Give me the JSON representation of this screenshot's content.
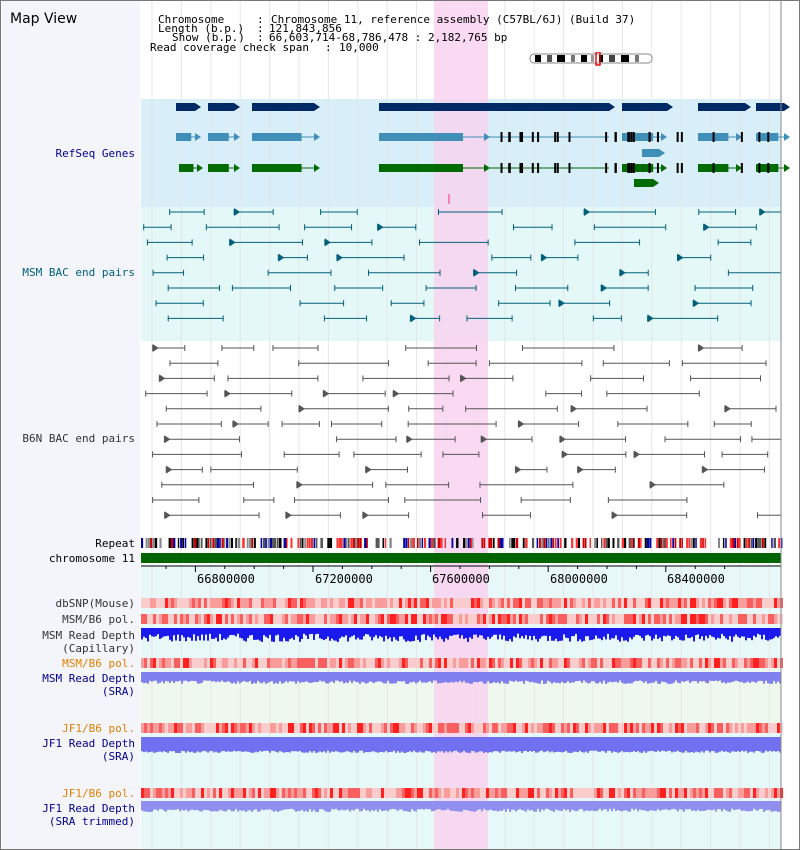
{
  "page": {
    "title": "Map View"
  },
  "header": {
    "chromosome_label": "Chromosome",
    "chromosome_value": "Chromosome 11, reference assembly (C57BL/6J) (Build 37)",
    "length_label": "Length (b.p.)",
    "length_value": "121,843,856",
    "show_label": "Show (b.p.)",
    "show_value": "66,603,714-68,786,478 : 2,182,765 bp",
    "read_label": "Read coverage check span",
    "read_value": "10,000"
  },
  "tracks": {
    "refseq": "RefSeq Genes",
    "msm_bac": "MSM BAC end pairs",
    "b6n_bac": "B6N BAC end pairs",
    "repeat": "Repeat",
    "chromosome": "chromosome 11",
    "dbsnp": "dbSNP(Mouse)",
    "msm_b6_pol": "MSM/B6 pol.",
    "msm_depth_cap_1": "MSM Read Depth",
    "msm_depth_cap_2": "(Capillary)",
    "msm_b6_pol_sra": "MSM/B6 pol.",
    "msm_depth_sra_1": "MSM Read Depth",
    "msm_depth_sra_2": "(SRA)",
    "jf1_b6_pol": "JF1/B6 pol.",
    "jf1_depth_1": "JF1 Read Depth",
    "jf1_depth_2": "(SRA)",
    "jf1_b6_pol_2": "JF1/B6 pol.",
    "jf1_depth_trim_1": "JF1 Read Depth",
    "jf1_depth_trim_2": "(SRA trimmed)"
  },
  "scale": {
    "ticks": [
      "66800000",
      "67200000",
      "67600000",
      "68000000",
      "68400000"
    ]
  },
  "colors": {
    "label_navy": "#00008b",
    "label_teal": "#00607a",
    "label_gray": "#333333",
    "label_orange": "#e08000",
    "highlight": "#f8d4f0",
    "refseq_bg": "#d8eef8",
    "bac_bg": "#e4f8f8",
    "gene_dark": "#002a66",
    "gene_mid": "#3f8fb8",
    "gene_green": "#006b00",
    "chromosome_bar": "#006400",
    "depth_blue": "#1a1aee",
    "depth_light": "#8080f0"
  }
}
